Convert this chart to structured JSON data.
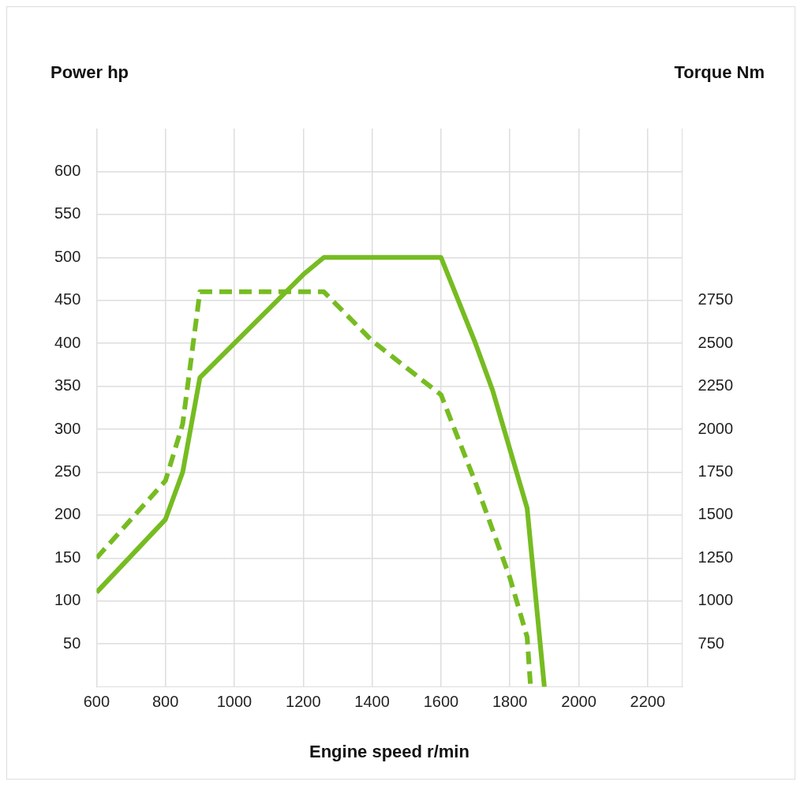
{
  "chart_data": {
    "type": "line",
    "ylabel": "Power hp",
    "y2label": "Torque Nm",
    "xlabel": "Engine speed r/min",
    "xlim": [
      600,
      2300
    ],
    "xticks": [
      600,
      800,
      1000,
      1200,
      1400,
      1600,
      1800,
      2000,
      2200
    ],
    "ylim": [
      0,
      650
    ],
    "yticks": [
      50,
      100,
      150,
      200,
      250,
      300,
      350,
      400,
      450,
      500,
      550,
      600
    ],
    "y2lim": [
      500,
      3750
    ],
    "y2ticks": [
      750,
      1000,
      1250,
      1500,
      1750,
      2000,
      2250,
      2500,
      2750
    ],
    "grid": true,
    "legend": false,
    "marker": "none",
    "series": [
      {
        "color": "#76bc21",
        "line_style": "solid",
        "x": [
          600,
          800,
          850,
          900,
          1000,
          1100,
          1200,
          1260,
          1600,
          1700,
          1750,
          1850,
          1900
        ],
        "values": [
          110,
          195,
          250,
          360,
          400,
          440,
          480,
          500,
          500,
          400,
          345,
          208,
          0
        ]
      },
      {
        "color": "#76bc21",
        "line_style": "dashed",
        "axis": "y2",
        "x": [
          600,
          800,
          850,
          900,
          1260,
          1400,
          1600,
          1700,
          1800,
          1850,
          1860
        ],
        "values": [
          1250,
          1700,
          2030,
          2800,
          2800,
          2515,
          2200,
          1690,
          1135,
          790,
          500
        ]
      }
    ]
  }
}
